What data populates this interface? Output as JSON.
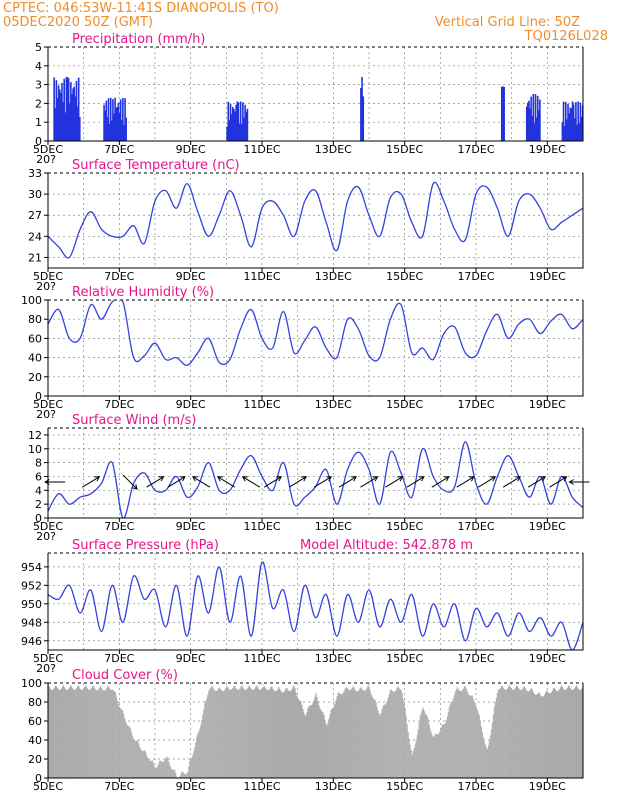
{
  "header": {
    "line1_left": "CPTEC:   046:53W-11:41S   DIANOPOLIS (TO)",
    "line2_left": "05DEC2020 50Z (GMT)",
    "line1_right": "Vertical Grid Line: 50Z",
    "line2_right": "TQ0126L028"
  },
  "x_axis": {
    "labels": [
      "5DEC",
      "7DEC",
      "9DEC",
      "11DEC",
      "13DEC",
      "15DEC",
      "17DEC",
      "19DEC"
    ],
    "label_days": [
      5,
      7,
      9,
      11,
      13,
      15,
      17,
      19
    ],
    "start_day": 5,
    "end_day": 20,
    "cut_label": "20?"
  },
  "colors": {
    "line": "#3344dd",
    "bar": "#2233dd",
    "cloud": "#aaaaaa",
    "header": "#f08c28",
    "title": "#e8148c"
  },
  "chart_data": [
    {
      "id": "precip",
      "type": "bar",
      "title": "Precipitation (mm/h)",
      "ylim": [
        0,
        5
      ],
      "yticks": [
        "0",
        "1",
        "2",
        "3",
        "4",
        "5"
      ],
      "bursts": [
        {
          "start": 5.15,
          "end": 5.9,
          "peak": 3.4
        },
        {
          "start": 6.55,
          "end": 7.2,
          "peak": 2.3
        },
        {
          "start": 10.0,
          "end": 10.6,
          "peak": 2.1
        },
        {
          "start": 13.75,
          "end": 13.85,
          "peak": 3.4
        },
        {
          "start": 17.7,
          "end": 17.8,
          "peak": 2.9
        },
        {
          "start": 18.4,
          "end": 18.8,
          "peak": 2.5
        },
        {
          "start": 19.4,
          "end": 20.0,
          "peak": 2.1
        }
      ]
    },
    {
      "id": "temp",
      "type": "line",
      "title": "Surface Temperature (nC)",
      "ylim": [
        19.5,
        33
      ],
      "yticks": [
        "21",
        "24",
        "27",
        "30",
        "33"
      ],
      "ytick_values": [
        21,
        24,
        27,
        30,
        33
      ],
      "x": [
        5,
        5.3,
        5.6,
        5.9,
        6.2,
        6.5,
        6.8,
        7.1,
        7.4,
        7.7,
        8.0,
        8.3,
        8.6,
        8.9,
        9.2,
        9.5,
        9.8,
        10.1,
        10.4,
        10.7,
        11.0,
        11.3,
        11.6,
        11.9,
        12.2,
        12.5,
        12.8,
        13.1,
        13.4,
        13.7,
        14.0,
        14.3,
        14.6,
        14.9,
        15.2,
        15.5,
        15.8,
        16.1,
        16.4,
        16.7,
        17.0,
        17.3,
        17.6,
        17.9,
        18.2,
        18.5,
        18.8,
        19.1,
        19.4,
        19.7,
        20.0
      ],
      "y": [
        24,
        22.5,
        21,
        25,
        27.5,
        25,
        24,
        24,
        25.5,
        23,
        29,
        30.5,
        28,
        31.5,
        27.5,
        24,
        27,
        30.5,
        27,
        22.5,
        28,
        29,
        27,
        24,
        29,
        30.5,
        26,
        22,
        29,
        31,
        27,
        24,
        29.5,
        30,
        26,
        24,
        31.5,
        29,
        25,
        23.5,
        30,
        31,
        28,
        24,
        29,
        30,
        28,
        25,
        26,
        27,
        28
      ]
    },
    {
      "id": "rh",
      "type": "line",
      "title": "Relative Humidity (%)",
      "ylim": [
        0,
        100
      ],
      "yticks": [
        "0",
        "20",
        "40",
        "60",
        "80",
        "100"
      ],
      "ytick_values": [
        0,
        20,
        40,
        60,
        80,
        100
      ],
      "x": [
        5,
        5.3,
        5.6,
        5.9,
        6.2,
        6.5,
        6.8,
        7.1,
        7.4,
        7.7,
        8.0,
        8.3,
        8.6,
        8.9,
        9.2,
        9.5,
        9.8,
        10.1,
        10.4,
        10.7,
        11.0,
        11.3,
        11.6,
        11.9,
        12.2,
        12.5,
        12.8,
        13.1,
        13.4,
        13.7,
        14.0,
        14.3,
        14.6,
        14.9,
        15.2,
        15.5,
        15.8,
        16.1,
        16.4,
        16.7,
        17.0,
        17.3,
        17.6,
        17.9,
        18.2,
        18.5,
        18.8,
        19.1,
        19.4,
        19.7,
        20.0
      ],
      "y": [
        75,
        90,
        60,
        60,
        95,
        80,
        98,
        98,
        40,
        42,
        55,
        38,
        40,
        32,
        45,
        60,
        35,
        38,
        70,
        90,
        60,
        50,
        88,
        45,
        58,
        72,
        50,
        40,
        80,
        70,
        42,
        40,
        80,
        95,
        45,
        50,
        38,
        65,
        72,
        45,
        42,
        68,
        85,
        60,
        75,
        80,
        65,
        78,
        85,
        70,
        80
      ]
    },
    {
      "id": "wind",
      "type": "line",
      "title": "Surface Wind (m/s)",
      "ylim": [
        0,
        13
      ],
      "yticks": [
        "0",
        "2",
        "4",
        "6",
        "8",
        "10",
        "12"
      ],
      "ytick_values": [
        0,
        2,
        4,
        6,
        8,
        10,
        12
      ],
      "x": [
        5,
        5.3,
        5.6,
        5.9,
        6.2,
        6.5,
        6.8,
        7.1,
        7.4,
        7.7,
        8.0,
        8.3,
        8.6,
        8.9,
        9.2,
        9.5,
        9.8,
        10.1,
        10.4,
        10.7,
        11.0,
        11.3,
        11.6,
        11.9,
        12.2,
        12.5,
        12.8,
        13.1,
        13.4,
        13.7,
        14.0,
        14.3,
        14.6,
        14.9,
        15.2,
        15.5,
        15.8,
        16.1,
        16.4,
        16.7,
        17.0,
        17.3,
        17.6,
        17.9,
        18.2,
        18.5,
        18.8,
        19.1,
        19.4,
        19.7,
        20.0
      ],
      "y": [
        1,
        3.5,
        2,
        3,
        3.5,
        5,
        8,
        0,
        5,
        6.5,
        4,
        4,
        6,
        3,
        4.5,
        8,
        4,
        4,
        7,
        9,
        6,
        4,
        8,
        2,
        3,
        4.5,
        7,
        2,
        7,
        9.5,
        7,
        2,
        9.5,
        6.5,
        3,
        10,
        6,
        4,
        4.5,
        11,
        5,
        2,
        6,
        9,
        6,
        3,
        6,
        2,
        6,
        3,
        1.5
      ],
      "arrows": [
        {
          "day": 5.2,
          "dir": "W"
        },
        {
          "day": 6.2,
          "dir": "NE"
        },
        {
          "day": 7.3,
          "dir": "SE"
        },
        {
          "day": 8.0,
          "dir": "NE"
        },
        {
          "day": 8.6,
          "dir": "NE"
        },
        {
          "day": 9.3,
          "dir": "NW"
        },
        {
          "day": 10.0,
          "dir": "NW"
        },
        {
          "day": 10.7,
          "dir": "NW"
        },
        {
          "day": 11.3,
          "dir": "NE"
        },
        {
          "day": 12.0,
          "dir": "NE"
        },
        {
          "day": 12.7,
          "dir": "NE"
        },
        {
          "day": 13.4,
          "dir": "NE"
        },
        {
          "day": 14.0,
          "dir": "NE"
        },
        {
          "day": 14.7,
          "dir": "NE"
        },
        {
          "day": 15.3,
          "dir": "NE"
        },
        {
          "day": 16.0,
          "dir": "NE"
        },
        {
          "day": 16.7,
          "dir": "NE"
        },
        {
          "day": 17.3,
          "dir": "NE"
        },
        {
          "day": 18.0,
          "dir": "NE"
        },
        {
          "day": 18.7,
          "dir": "NE"
        },
        {
          "day": 19.3,
          "dir": "NE"
        },
        {
          "day": 19.9,
          "dir": "W"
        }
      ]
    },
    {
      "id": "pressure",
      "type": "line",
      "title": "Surface Pressure (hPa)",
      "subtitle": "Model Altitude: 542.878  m",
      "ylim": [
        945,
        955.5
      ],
      "yticks": [
        "946",
        "948",
        "950",
        "952",
        "954"
      ],
      "ytick_values": [
        946,
        948,
        950,
        952,
        954
      ],
      "x": [
        5,
        5.3,
        5.6,
        5.9,
        6.2,
        6.5,
        6.8,
        7.1,
        7.4,
        7.7,
        8.0,
        8.3,
        8.6,
        8.9,
        9.2,
        9.5,
        9.8,
        10.1,
        10.4,
        10.7,
        11.0,
        11.3,
        11.6,
        11.9,
        12.2,
        12.5,
        12.8,
        13.1,
        13.4,
        13.7,
        14.0,
        14.3,
        14.6,
        14.9,
        15.2,
        15.5,
        15.8,
        16.1,
        16.4,
        16.7,
        17.0,
        17.3,
        17.6,
        17.9,
        18.2,
        18.5,
        18.8,
        19.1,
        19.4,
        19.7,
        20.0
      ],
      "y": [
        951,
        950.5,
        952,
        949,
        951.5,
        947,
        952,
        948,
        953,
        950.5,
        951.5,
        947.5,
        952,
        946.5,
        953,
        949,
        954,
        948,
        953,
        946.5,
        954.5,
        949.5,
        951.5,
        947,
        952,
        948.5,
        951,
        946.5,
        951,
        948,
        951.5,
        947.5,
        950.5,
        948,
        951,
        946.5,
        950,
        947.5,
        950,
        946,
        949.5,
        947.5,
        949,
        946.5,
        949,
        947,
        948.5,
        946.5,
        948,
        945,
        948
      ]
    },
    {
      "id": "cloud",
      "type": "area",
      "title": "Cloud Cover (%)",
      "ylim": [
        0,
        100
      ],
      "yticks": [
        "0",
        "20",
        "40",
        "60",
        "80",
        "100"
      ],
      "ytick_values": [
        0,
        20,
        40,
        60,
        80,
        100
      ],
      "x": [
        5,
        5.3,
        5.6,
        5.9,
        6.2,
        6.5,
        6.8,
        7.1,
        7.4,
        7.7,
        8.0,
        8.3,
        8.6,
        8.9,
        9.2,
        9.5,
        9.8,
        10.1,
        10.4,
        10.7,
        11.0,
        11.3,
        11.6,
        11.9,
        12.2,
        12.5,
        12.8,
        13.1,
        13.4,
        13.7,
        14.0,
        14.3,
        14.6,
        14.9,
        15.2,
        15.5,
        15.8,
        16.1,
        16.4,
        16.7,
        17.0,
        17.3,
        17.6,
        17.9,
        18.2,
        18.5,
        18.8,
        19.1,
        19.4,
        19.7,
        20.0
      ],
      "y": [
        98,
        98,
        98,
        98,
        98,
        97,
        98,
        70,
        45,
        30,
        15,
        25,
        5,
        10,
        50,
        98,
        96,
        98,
        98,
        98,
        98,
        97,
        95,
        98,
        70,
        90,
        60,
        90,
        98,
        96,
        98,
        70,
        95,
        98,
        25,
        80,
        45,
        60,
        95,
        98,
        80,
        30,
        98,
        98,
        98,
        96,
        90,
        95,
        98,
        98,
        98
      ]
    }
  ]
}
